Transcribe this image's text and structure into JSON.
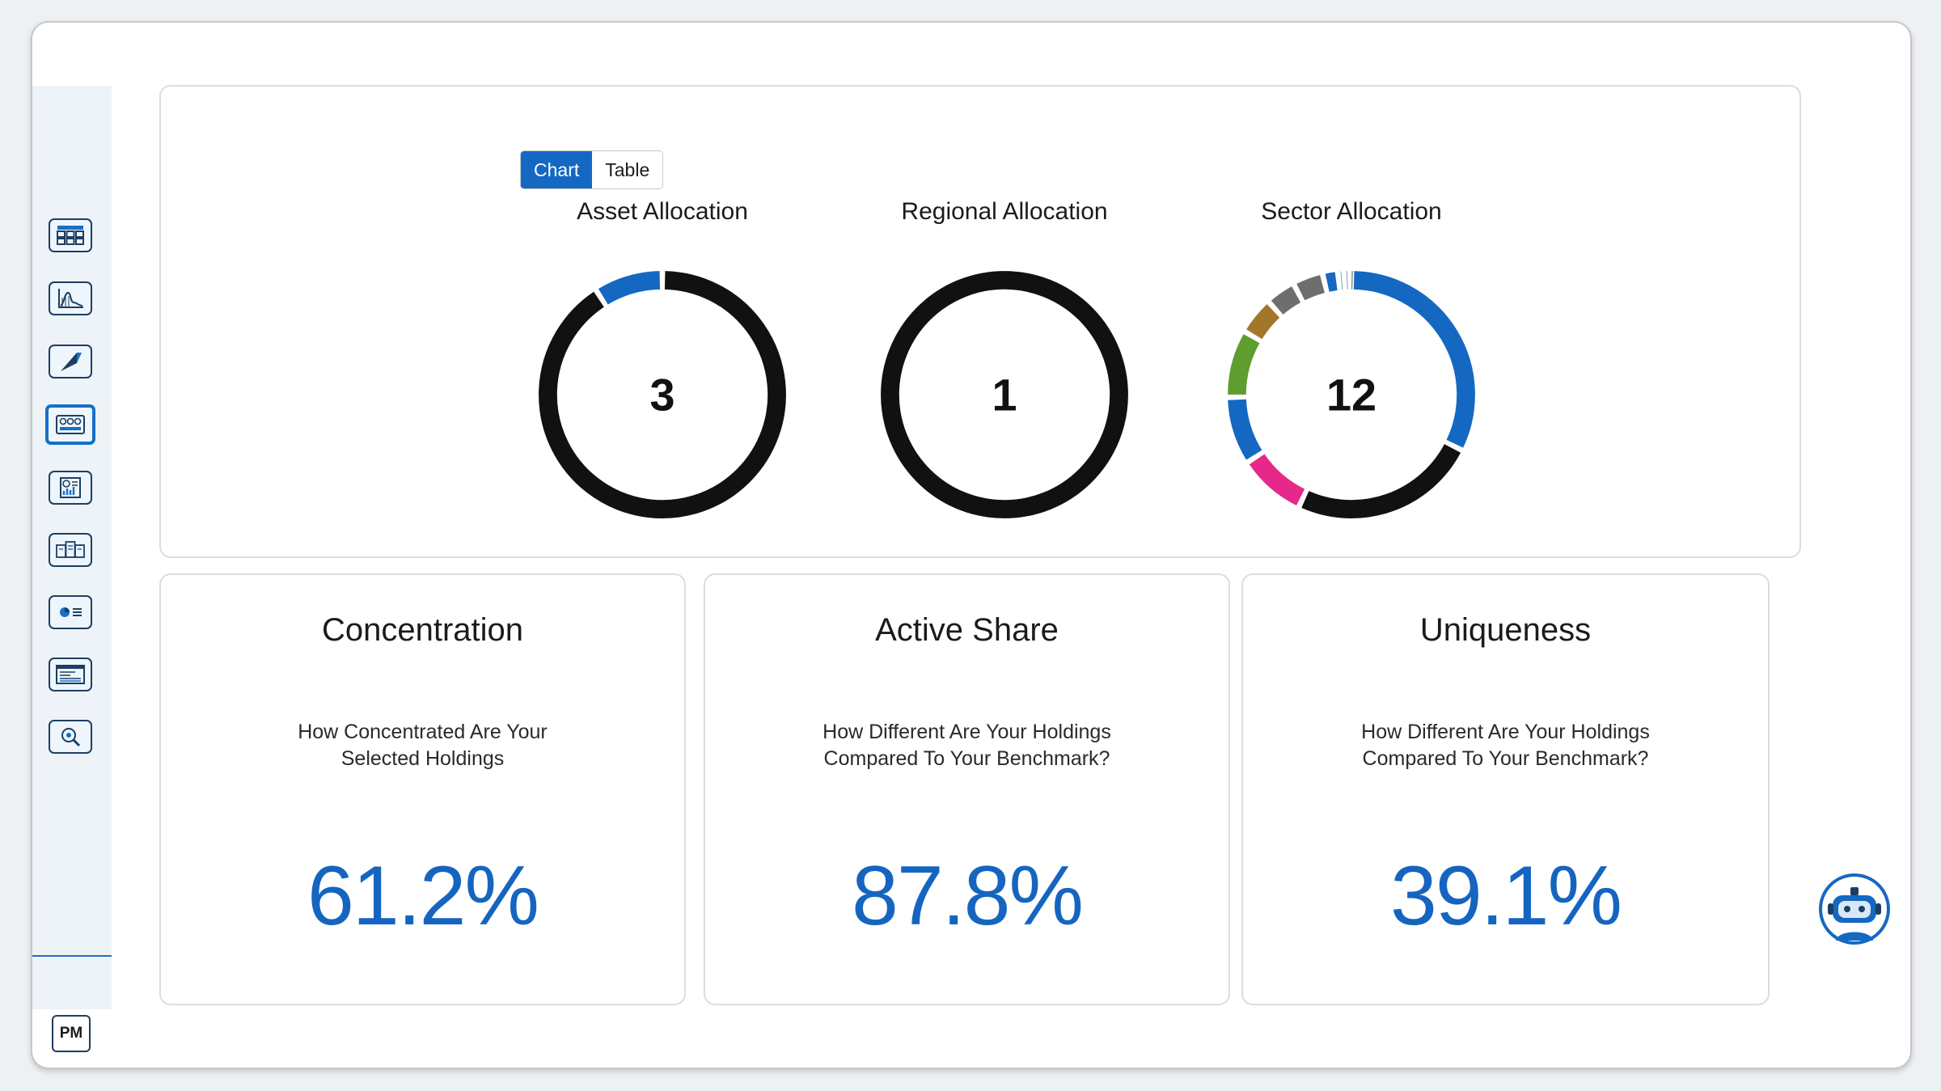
{
  "view_toggle": {
    "chart_label": "Chart",
    "table_label": "Table"
  },
  "allocations": [
    {
      "title": "Asset Allocation",
      "count": "3"
    },
    {
      "title": "Regional Allocation",
      "count": "1"
    },
    {
      "title": "Sector Allocation",
      "count": "12"
    }
  ],
  "metrics": [
    {
      "title": "Concentration",
      "line1": "How Concentrated Are Your",
      "line2": "Selected Holdings",
      "value": "61.2%"
    },
    {
      "title": "Active Share",
      "line1": "How Different Are Your Holdings",
      "line2": "Compared To Your Benchmark?",
      "value": "87.8%"
    },
    {
      "title": "Uniqueness",
      "line1": "How Different Are Your Holdings",
      "line2": "Compared To Your Benchmark?",
      "value": "39.1%"
    }
  ],
  "sidebar": {
    "items": [
      {
        "icon": "grid-table-icon"
      },
      {
        "icon": "line-chart-icon"
      },
      {
        "icon": "triangle-shape-icon"
      },
      {
        "icon": "panel-dashboard-icon",
        "active": true
      },
      {
        "icon": "report-chart-icon"
      },
      {
        "icon": "documents-icon"
      },
      {
        "icon": "pie-list-icon"
      },
      {
        "icon": "text-lines-icon"
      },
      {
        "icon": "search-analyze-icon"
      }
    ],
    "user_initials": "PM"
  },
  "colors": {
    "accent": "#1468c2",
    "ring_dark": "#111111",
    "metric_value": "#1565c0"
  },
  "chart_data": [
    {
      "type": "pie",
      "style": "donut",
      "title": "Asset Allocation",
      "center_label": "3",
      "values": [
        91,
        9
      ],
      "colors": [
        "#111111",
        "#1468c2"
      ]
    },
    {
      "type": "pie",
      "style": "donut",
      "title": "Regional Allocation",
      "center_label": "1",
      "values": [
        100
      ],
      "colors": [
        "#111111"
      ]
    },
    {
      "type": "pie",
      "style": "donut",
      "title": "Sector Allocation",
      "center_label": "12",
      "values": [
        33,
        25,
        9,
        9,
        9,
        5,
        4,
        4,
        2,
        0.8,
        0.7,
        0.3
      ],
      "colors": [
        "#1468c2",
        "#111111",
        "#e5288a",
        "#1468c2",
        "#5d9e2e",
        "#a3772a",
        "#6e6e6e",
        "#6e6e6e",
        "#1468c2",
        "#1b9a7a",
        "#707070",
        "#111111"
      ]
    }
  ]
}
